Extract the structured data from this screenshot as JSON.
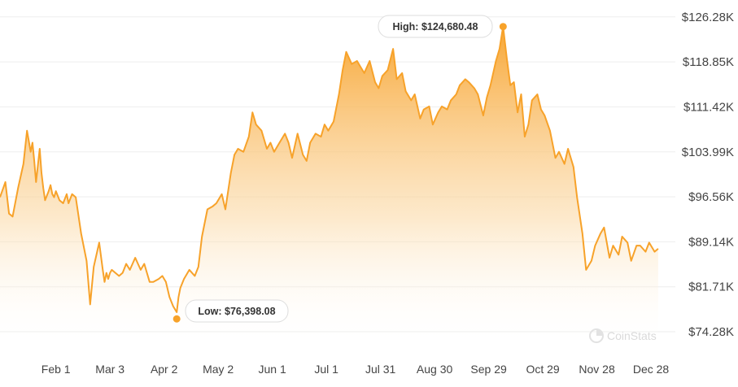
{
  "chart_data": {
    "type": "area",
    "title": "",
    "xlabel": "",
    "ylabel": "",
    "ylim": [
      72000,
      128000
    ],
    "y_ticks": [
      "$126.28K",
      "$118.85K",
      "$111.42K",
      "$103.99K",
      "$96.56K",
      "$89.14K",
      "$81.71K",
      "$74.28K"
    ],
    "y_tick_values": [
      126280,
      118850,
      111420,
      103990,
      96560,
      89140,
      81710,
      74280
    ],
    "x_ticks": [
      "Feb 1",
      "Mar 3",
      "Apr 2",
      "May 2",
      "Jun 1",
      "Jul 1",
      "Jul 31",
      "Aug 30",
      "Sep 29",
      "Oct 29",
      "Nov 28",
      "Dec 28"
    ],
    "x_tick_days": [
      31,
      61,
      91,
      121,
      151,
      181,
      211,
      241,
      271,
      301,
      331,
      361
    ],
    "x_range_days": [
      0,
      370
    ],
    "grid": true,
    "legend": "none",
    "high": {
      "label": "High: $124,680.48",
      "day": 279,
      "value": 124680.48
    },
    "low": {
      "label": "Low: $76,398.08",
      "day": 98,
      "value": 76398.08
    },
    "series": [
      {
        "days": [
          0,
          3,
          5,
          7,
          10,
          13,
          15,
          17,
          18,
          19,
          20,
          22,
          23,
          24,
          25,
          27,
          28,
          29,
          30,
          31,
          33,
          35,
          37,
          38,
          40,
          42,
          45,
          48,
          50,
          52,
          55,
          57,
          58,
          59,
          60,
          61,
          62,
          64,
          66,
          68,
          70,
          72,
          75,
          78,
          80,
          83,
          85,
          88,
          90,
          92,
          94,
          96,
          98,
          99,
          100,
          102,
          105,
          108,
          110,
          112,
          115,
          118,
          120,
          123,
          125,
          128,
          130,
          132,
          135,
          138,
          140,
          142,
          145,
          148,
          150,
          152,
          155,
          158,
          160,
          162,
          165,
          168,
          170,
          172,
          175,
          178,
          180,
          182,
          185,
          188,
          190,
          192,
          195,
          198,
          200,
          202,
          205,
          208,
          210,
          212,
          215,
          218,
          220,
          223,
          225,
          228,
          230,
          233,
          235,
          238,
          240,
          243,
          245,
          248,
          250,
          253,
          255,
          258,
          260,
          263,
          265,
          268,
          270,
          272,
          275,
          277,
          279,
          281,
          283,
          285,
          287,
          289,
          291,
          293,
          295,
          298,
          300,
          302,
          305,
          308,
          310,
          313,
          315,
          318,
          320,
          323,
          325,
          328,
          330,
          333,
          335,
          338,
          340,
          343,
          345,
          348,
          350,
          353,
          355,
          358,
          360,
          363,
          365
        ],
        "values": [
          96500,
          99000,
          93800,
          93300,
          98000,
          102000,
          107500,
          104000,
          105500,
          102500,
          99000,
          104500,
          100500,
          98000,
          96000,
          97500,
          98500,
          97000,
          96500,
          97500,
          96000,
          95500,
          97000,
          95500,
          97000,
          96500,
          90500,
          86000,
          78800,
          85000,
          89000,
          84500,
          82500,
          84000,
          83000,
          84000,
          84500,
          84000,
          83500,
          84000,
          85500,
          84500,
          86500,
          84500,
          85500,
          82500,
          82500,
          83000,
          83500,
          82500,
          80000,
          78500,
          77500,
          80000,
          81500,
          83000,
          84500,
          83500,
          85000,
          90000,
          94500,
          95000,
          95500,
          97000,
          94500,
          100500,
          103500,
          104500,
          104000,
          106500,
          110500,
          108500,
          107500,
          104500,
          105500,
          104000,
          105500,
          107000,
          105500,
          103000,
          107000,
          103500,
          102500,
          105500,
          107000,
          106500,
          108500,
          107500,
          109000,
          113500,
          117500,
          120500,
          118500,
          119000,
          118000,
          117000,
          119000,
          115500,
          114500,
          116500,
          117500,
          121000,
          116000,
          117000,
          114000,
          112500,
          113500,
          109500,
          111000,
          111500,
          108500,
          110500,
          111500,
          111000,
          112500,
          113500,
          115000,
          116000,
          115500,
          114500,
          113500,
          110000,
          113000,
          115000,
          119000,
          121000,
          124680.48,
          119500,
          115000,
          115500,
          110500,
          113500,
          106500,
          108500,
          112500,
          113500,
          111000,
          110000,
          107500,
          103000,
          104000,
          102000,
          104500,
          101500,
          96500,
          90500,
          84500,
          86000,
          88500,
          90500,
          91500,
          86500,
          88500,
          87000,
          90000,
          89000,
          86000,
          88500,
          88500,
          87500,
          89000,
          87500,
          88000
        ]
      }
    ],
    "watermark": "CoinStats",
    "colors": {
      "line": "#f7a22a",
      "fill_top": "#f7a22a",
      "fill_bottom": "#ffffff",
      "grid": "#eeeeee",
      "text": "#444444",
      "marker": "#f7a22a"
    }
  }
}
